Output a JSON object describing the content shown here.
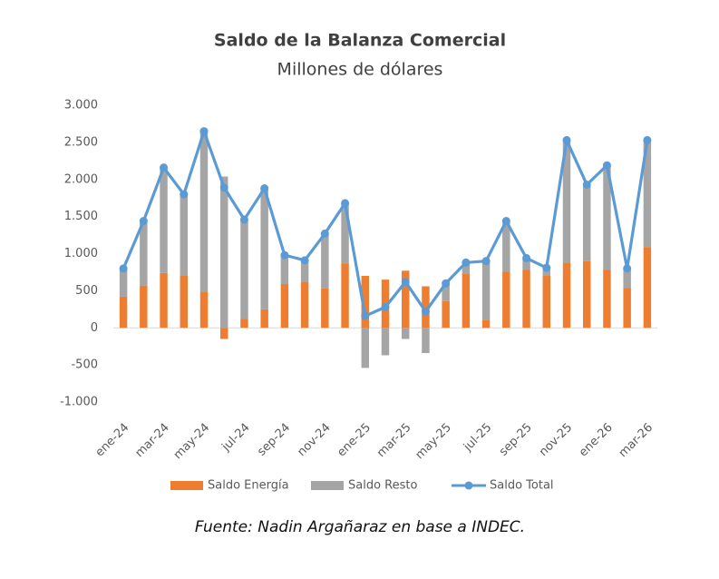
{
  "chart_data": {
    "type": "combo",
    "title": "Saldo de la Balanza Comercial",
    "subtitle": "Millones de dólares",
    "source": "Fuente: Nadin Argañaraz en base a INDEC.",
    "categories": [
      "ene-24",
      null,
      "mar-24",
      null,
      "may-24",
      null,
      "jul-24",
      null,
      "sep-24",
      null,
      "nov-24",
      null,
      "ene-25",
      null,
      "mar-25",
      null,
      "may-25",
      null,
      "jul-25",
      null,
      "sep-25",
      null,
      "nov-25",
      null,
      "ene-26",
      null,
      "mar-26"
    ],
    "series": [
      {
        "name": "Saldo Energía",
        "type": "bar",
        "color": "#ed7d31",
        "values": [
          420,
          570,
          740,
          710,
          480,
          -150,
          120,
          250,
          590,
          620,
          530,
          870,
          700,
          650,
          770,
          560,
          360,
          730,
          110,
          760,
          780,
          700,
          880,
          900,
          780,
          540,
          1090
        ]
      },
      {
        "name": "Saldo Resto",
        "type": "bar",
        "color": "#a5a5a5",
        "values": [
          380,
          870,
          1420,
          1090,
          2170,
          2040,
          1340,
          1630,
          390,
          290,
          740,
          810,
          -540,
          -370,
          -150,
          -340,
          240,
          150,
          790,
          680,
          160,
          110,
          1650,
          1030,
          1410,
          260,
          1440
        ]
      },
      {
        "name": "Saldo Total",
        "type": "line",
        "color": "#5b9bd5",
        "values": [
          800,
          1440,
          2160,
          1800,
          2650,
          1890,
          1460,
          1880,
          980,
          910,
          1270,
          1680,
          160,
          280,
          620,
          220,
          600,
          880,
          900,
          1440,
          940,
          810,
          2530,
          1930,
          2190,
          800,
          2530
        ]
      }
    ],
    "ylim": [
      -1000,
      3000
    ],
    "yticks": [
      {
        "value": -1000,
        "label": "-1.000"
      },
      -500,
      0,
      500,
      {
        "value": 1000,
        "label": "1.000"
      },
      {
        "value": 1500,
        "label": "1.500"
      },
      {
        "value": 2000,
        "label": "2.000"
      },
      {
        "value": 2500,
        "label": "2.500"
      },
      {
        "value": 3000,
        "label": "3.000"
      }
    ],
    "grid": false
  }
}
